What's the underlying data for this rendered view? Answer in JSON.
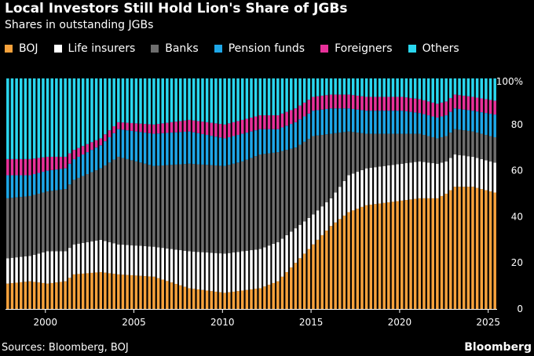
{
  "chart_data": {
    "type": "bar",
    "stacked": true,
    "title": "Local Investors Still Hold Lion's Share of JGBs",
    "subtitle": "Shares in outstanding JGBs",
    "ylabel": "",
    "xlabel": "",
    "ylim": [
      0,
      100
    ],
    "y_ticks": [
      "0",
      "20",
      "40",
      "60",
      "80",
      "100%"
    ],
    "y_tick_values": [
      0,
      20,
      40,
      60,
      80,
      100
    ],
    "x_ticks": [
      "2000",
      "2005",
      "2010",
      "2015",
      "2020",
      "2025"
    ],
    "x_tick_values": [
      2000,
      2005,
      2010,
      2015,
      2020,
      2025
    ],
    "x_start": 1997.75,
    "x_end": 2025.5,
    "period": 0.25,
    "legend_position": "top",
    "series": [
      {
        "name": "BOJ",
        "color": "#f7a23c",
        "keyframes": [
          [
            1997.75,
            11
          ],
          [
            1999,
            12
          ],
          [
            2000,
            11
          ],
          [
            2001,
            12
          ],
          [
            2001.5,
            15
          ],
          [
            2003,
            16
          ],
          [
            2004,
            15
          ],
          [
            2006,
            14
          ],
          [
            2008,
            9
          ],
          [
            2010,
            7
          ],
          [
            2011,
            8
          ],
          [
            2012,
            9
          ],
          [
            2013,
            12
          ],
          [
            2014,
            20
          ],
          [
            2015,
            28
          ],
          [
            2016,
            36
          ],
          [
            2017,
            42
          ],
          [
            2018,
            45
          ],
          [
            2019,
            46
          ],
          [
            2020,
            47
          ],
          [
            2021,
            48
          ],
          [
            2022,
            48
          ],
          [
            2022.5,
            50
          ],
          [
            2023,
            53
          ],
          [
            2024,
            53
          ],
          [
            2025.5,
            50
          ]
        ]
      },
      {
        "name": "Life insurers",
        "color": "#ffffff",
        "keyframes": [
          [
            1997.75,
            11
          ],
          [
            1999,
            11
          ],
          [
            2000,
            14
          ],
          [
            2001,
            13
          ],
          [
            2001.5,
            13
          ],
          [
            2003,
            14
          ],
          [
            2004,
            13
          ],
          [
            2006,
            13
          ],
          [
            2008,
            16
          ],
          [
            2010,
            17
          ],
          [
            2011,
            17
          ],
          [
            2012,
            17
          ],
          [
            2013,
            17
          ],
          [
            2014,
            15
          ],
          [
            2015,
            13
          ],
          [
            2016,
            12
          ],
          [
            2017,
            16
          ],
          [
            2018,
            16
          ],
          [
            2019,
            16
          ],
          [
            2020,
            16
          ],
          [
            2021,
            16
          ],
          [
            2022,
            15
          ],
          [
            2022.5,
            14
          ],
          [
            2023,
            14
          ],
          [
            2024,
            13
          ],
          [
            2025.5,
            13
          ]
        ]
      },
      {
        "name": "Banks",
        "color": "#6e6e6e",
        "keyframes": [
          [
            1997.75,
            26
          ],
          [
            1999,
            26
          ],
          [
            2000,
            26
          ],
          [
            2001,
            27
          ],
          [
            2001.5,
            28
          ],
          [
            2003,
            31
          ],
          [
            2004,
            38
          ],
          [
            2006,
            35
          ],
          [
            2008,
            38
          ],
          [
            2010,
            38
          ],
          [
            2011,
            39
          ],
          [
            2012,
            41
          ],
          [
            2013,
            39
          ],
          [
            2014,
            35
          ],
          [
            2015,
            34
          ],
          [
            2016,
            28
          ],
          [
            2017,
            19
          ],
          [
            2018,
            15
          ],
          [
            2019,
            14
          ],
          [
            2020,
            13
          ],
          [
            2021,
            12
          ],
          [
            2022,
            11
          ],
          [
            2022.5,
            11
          ],
          [
            2023,
            11
          ],
          [
            2024,
            11
          ],
          [
            2025.5,
            11
          ]
        ]
      },
      {
        "name": "Pension funds",
        "color": "#1ea7e8",
        "keyframes": [
          [
            1997.75,
            10
          ],
          [
            1999,
            9
          ],
          [
            2000,
            9
          ],
          [
            2001,
            9
          ],
          [
            2001.5,
            9
          ],
          [
            2003,
            10
          ],
          [
            2004,
            12
          ],
          [
            2006,
            14
          ],
          [
            2008,
            14
          ],
          [
            2010,
            12
          ],
          [
            2011,
            12
          ],
          [
            2012,
            11
          ],
          [
            2013,
            10
          ],
          [
            2014,
            11
          ],
          [
            2015,
            11
          ],
          [
            2016,
            11
          ],
          [
            2017,
            10
          ],
          [
            2018,
            10
          ],
          [
            2019,
            10
          ],
          [
            2020,
            10
          ],
          [
            2021,
            9
          ],
          [
            2022,
            9
          ],
          [
            2022.5,
            9
          ],
          [
            2023,
            9
          ],
          [
            2024,
            9
          ],
          [
            2025.5,
            10
          ]
        ]
      },
      {
        "name": "Foreigners",
        "color": "#e8319a",
        "keyframes": [
          [
            1997.75,
            7
          ],
          [
            1999,
            7
          ],
          [
            2000,
            6
          ],
          [
            2001,
            5
          ],
          [
            2001.5,
            4
          ],
          [
            2003,
            3
          ],
          [
            2004,
            3
          ],
          [
            2006,
            4
          ],
          [
            2008,
            5
          ],
          [
            2010,
            6
          ],
          [
            2011,
            6
          ],
          [
            2012,
            6
          ],
          [
            2013,
            6
          ],
          [
            2014,
            6
          ],
          [
            2015,
            6
          ],
          [
            2016,
            6
          ],
          [
            2017,
            6
          ],
          [
            2018,
            6
          ],
          [
            2019,
            6
          ],
          [
            2020,
            6
          ],
          [
            2021,
            6
          ],
          [
            2022,
            6
          ],
          [
            2022.5,
            6
          ],
          [
            2023,
            6
          ],
          [
            2024,
            6
          ],
          [
            2025.5,
            6
          ]
        ]
      },
      {
        "name": "Others",
        "color": "#2ad7ef",
        "keyframes": [
          [
            1997.75,
            35
          ],
          [
            1999,
            35
          ],
          [
            2000,
            34
          ],
          [
            2001,
            34
          ],
          [
            2001.5,
            31
          ],
          [
            2003,
            26
          ],
          [
            2004,
            19
          ],
          [
            2006,
            20
          ],
          [
            2008,
            18
          ],
          [
            2010,
            20
          ],
          [
            2011,
            18
          ],
          [
            2012,
            16
          ],
          [
            2013,
            16
          ],
          [
            2014,
            13
          ],
          [
            2015,
            8
          ],
          [
            2016,
            7
          ],
          [
            2017,
            7
          ],
          [
            2018,
            8
          ],
          [
            2019,
            8
          ],
          [
            2020,
            8
          ],
          [
            2021,
            9
          ],
          [
            2022,
            11
          ],
          [
            2022.5,
            10
          ],
          [
            2023,
            7
          ],
          [
            2024,
            8
          ],
          [
            2025.5,
            10
          ]
        ]
      }
    ]
  },
  "footer": {
    "source": "Sources: Bloomberg, BOJ",
    "brand": "Bloomberg"
  }
}
